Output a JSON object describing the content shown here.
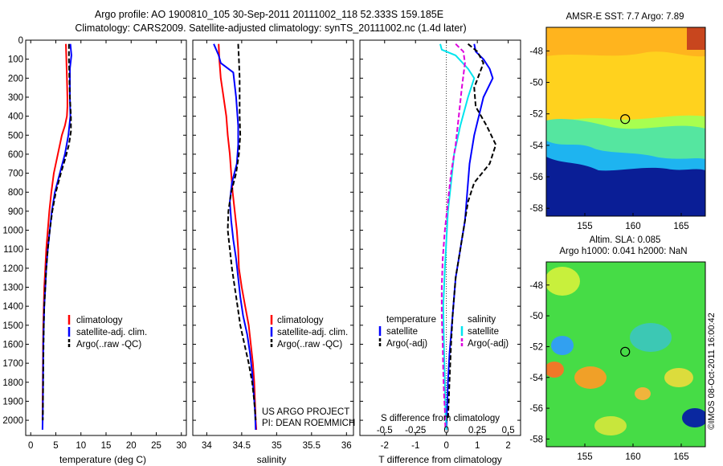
{
  "header": {
    "title_line1": "Argo profile: AO 1900810_105 30-Sep-2011 20111002_118 52.333S 159.185E",
    "title_line2": "Climatology: CARS2009. Satellite-adjusted climatology: synTS_20111002.nc (1.4d later)"
  },
  "footer": {
    "project_line1": "US ARGO PROJECT",
    "project_line2": "PI: DEAN ROEMMICH",
    "copyright": "©IMOS 08-Oct-2011 16:00:42"
  },
  "colors": {
    "climatology": "#ff0000",
    "satellite": "#0000ff",
    "argo": "#000000",
    "sat_salinity": "#00e5ee",
    "argo_salinity": "#dd00dd"
  },
  "chart_data": [
    {
      "type": "line",
      "xlabel": "temperature (deg C)",
      "ylabel": "",
      "xlim": [
        -1,
        31
      ],
      "ylim": [
        2080,
        0
      ],
      "xticks": [
        "0",
        "5",
        "10",
        "15",
        "20",
        "25",
        "30"
      ],
      "xtick_values": [
        0,
        5,
        10,
        15,
        20,
        25,
        30
      ],
      "yticks": [
        0,
        100,
        200,
        300,
        400,
        500,
        600,
        700,
        800,
        900,
        1000,
        1100,
        1200,
        1300,
        1400,
        1500,
        1600,
        1700,
        1800,
        1900,
        2000
      ],
      "legend": [
        "climatology",
        "satellite-adj. clim.",
        "Argo(..raw -QC)"
      ],
      "series": [
        {
          "name": "climatology",
          "style": "solid",
          "color": "#ff0000",
          "x": [
            7.0,
            7.1,
            7.2,
            7.3,
            7.3,
            7.2,
            6.8,
            6.2,
            5.4,
            4.6,
            4.1,
            3.7,
            3.4,
            3.1,
            2.9,
            2.7,
            2.6,
            2.5,
            2.45,
            2.4,
            2.35
          ],
          "y": [
            20,
            100,
            200,
            300,
            350,
            400,
            450,
            500,
            600,
            700,
            800,
            900,
            1000,
            1100,
            1200,
            1300,
            1400,
            1500,
            1600,
            1800,
            2000
          ]
        },
        {
          "name": "satellite-adj. clim.",
          "style": "solid",
          "color": "#0000ff",
          "x": [
            7.9,
            8.1,
            7.8,
            7.8,
            7.9,
            7.5,
            6.8,
            5.8,
            4.8,
            4.2,
            3.8,
            3.4,
            3.1,
            2.9,
            2.7,
            2.6,
            2.5,
            2.45,
            2.4,
            2.35
          ],
          "y": [
            20,
            80,
            150,
            300,
            400,
            500,
            600,
            700,
            800,
            900,
            1000,
            1100,
            1200,
            1300,
            1400,
            1500,
            1600,
            1800,
            1950,
            2050
          ]
        },
        {
          "name": "Argo(..raw -QC)",
          "style": "dashed",
          "color": "#000000",
          "x": [
            7.6,
            7.6,
            7.7,
            7.8,
            8.0,
            8.0,
            7.6,
            6.9,
            6.0,
            5.0,
            4.3,
            3.8,
            3.4,
            3.1,
            2.9,
            2.7,
            2.6,
            2.5,
            2.4
          ],
          "y": [
            20,
            100,
            200,
            300,
            400,
            480,
            550,
            620,
            700,
            800,
            900,
            1000,
            1100,
            1200,
            1300,
            1400,
            1500,
            1700,
            2000
          ]
        }
      ]
    },
    {
      "type": "line",
      "xlabel": "salinity",
      "ylabel": "",
      "xlim": [
        33.8,
        36.1
      ],
      "ylim": [
        2080,
        0
      ],
      "xticks": [
        "34",
        "34.5",
        "35",
        "35.5",
        "36"
      ],
      "xtick_values": [
        34,
        34.5,
        35,
        35.5,
        36
      ],
      "legend": [
        "climatology",
        "satellite-adj. clim.",
        "Argo(..raw -QC)"
      ],
      "series": [
        {
          "name": "climatology",
          "style": "solid",
          "color": "#ff0000",
          "x": [
            34.17,
            34.18,
            34.2,
            34.24,
            34.28,
            34.3,
            34.33,
            34.35,
            34.37,
            34.4,
            34.43,
            34.45,
            34.46,
            34.5,
            34.55,
            34.6,
            34.63,
            34.66,
            34.68,
            34.69,
            34.7,
            34.71
          ],
          "y": [
            20,
            100,
            200,
            300,
            400,
            500,
            600,
            700,
            800,
            900,
            1000,
            1100,
            1200,
            1300,
            1400,
            1500,
            1600,
            1700,
            1800,
            1900,
            2000,
            2050
          ]
        },
        {
          "name": "satellite-adj. clim.",
          "style": "solid",
          "color": "#0000ff",
          "x": [
            34.1,
            34.17,
            34.2,
            34.38,
            34.42,
            34.45,
            34.45,
            34.43,
            34.36,
            34.33,
            34.35,
            34.38,
            34.42,
            34.45,
            34.48,
            34.52,
            34.58,
            34.62,
            34.65,
            34.67,
            34.69,
            34.7
          ],
          "y": [
            20,
            80,
            120,
            170,
            300,
            450,
            550,
            650,
            750,
            850,
            950,
            1050,
            1150,
            1250,
            1350,
            1450,
            1550,
            1650,
            1750,
            1850,
            1950,
            2050
          ]
        },
        {
          "name": "Argo(..raw -QC)",
          "style": "dashed",
          "color": "#000000",
          "x": [
            34.45,
            34.46,
            34.47,
            34.47,
            34.47,
            34.48,
            34.46,
            34.42,
            34.35,
            34.31,
            34.3,
            34.33,
            34.36,
            34.4,
            34.44,
            34.48,
            34.54,
            34.6,
            34.65,
            34.68,
            34.7
          ],
          "y": [
            20,
            100,
            200,
            300,
            400,
            500,
            600,
            700,
            800,
            900,
            1000,
            1100,
            1200,
            1300,
            1400,
            1500,
            1600,
            1700,
            1800,
            1900,
            2000
          ]
        }
      ]
    },
    {
      "type": "line",
      "xlabel": "T difference from climatology",
      "x2label": "S difference from climatology",
      "xlim": [
        -2.8,
        2.4
      ],
      "ylim": [
        2080,
        0
      ],
      "xticks": [
        "-2",
        "-1",
        "0",
        "1",
        "2"
      ],
      "xtick_values": [
        -2,
        -1,
        0,
        1,
        2
      ],
      "x2ticks": [
        "-0.5",
        "-0.25",
        "0",
        "0.25",
        "0.5"
      ],
      "legend_headers": [
        "temperature",
        "salinity"
      ],
      "legend": [
        "satellite",
        "Argo(-adj)",
        "satellite",
        "Argo(-adj)"
      ],
      "series": [
        {
          "name": "satellite",
          "quantity": "temperature",
          "style": "solid",
          "color": "#0000ff",
          "x": [
            0.9,
            0.95,
            1.2,
            1.4,
            1.5,
            1.2,
            0.9,
            0.75,
            0.7,
            0.65,
            0.6,
            0.5,
            0.4,
            0.3,
            0.25,
            0.2,
            0.15,
            0.1,
            0.05,
            0.0
          ],
          "y": [
            20,
            60,
            100,
            150,
            200,
            300,
            500,
            650,
            750,
            850,
            950,
            1050,
            1150,
            1250,
            1350,
            1450,
            1550,
            1650,
            1800,
            2050
          ]
        },
        {
          "name": "Argo(-adj)",
          "quantity": "temperature",
          "style": "dashed",
          "color": "#000000",
          "x": [
            0.7,
            1.0,
            1.2,
            0.9,
            0.95,
            1.3,
            1.6,
            1.4,
            0.9,
            0.7,
            0.6,
            0.5,
            0.4,
            0.3,
            0.25,
            0.2,
            0.15,
            0.1,
            0.05
          ],
          "y": [
            20,
            60,
            120,
            250,
            350,
            450,
            550,
            650,
            750,
            850,
            950,
            1050,
            1150,
            1250,
            1350,
            1450,
            1600,
            1800,
            2000
          ]
        },
        {
          "name": "satellite",
          "quantity": "salinity",
          "style": "solid",
          "color": "#00e5ee",
          "x": [
            -0.2,
            -0.15,
            0.3,
            0.7,
            0.9,
            0.7,
            0.45,
            0.25,
            0.15,
            0.05,
            0.0,
            -0.05,
            -0.1,
            -0.08,
            -0.05,
            -0.03,
            0.0
          ],
          "y": [
            20,
            50,
            80,
            150,
            200,
            300,
            450,
            600,
            750,
            900,
            1050,
            1200,
            1400,
            1600,
            1800,
            1950,
            2050
          ]
        },
        {
          "name": "Argo(-adj)",
          "quantity": "salinity",
          "style": "dashed",
          "color": "#dd00dd",
          "x": [
            0.3,
            0.55,
            0.6,
            0.5,
            0.4,
            0.3,
            0.15,
            0.05,
            -0.05,
            -0.12,
            -0.15,
            -0.15,
            -0.12,
            -0.1,
            -0.08,
            -0.05,
            -0.03
          ],
          "y": [
            20,
            60,
            120,
            250,
            400,
            550,
            700,
            850,
            1000,
            1150,
            1300,
            1450,
            1600,
            1750,
            1850,
            1950,
            2050
          ]
        }
      ]
    },
    {
      "type": "heatmap",
      "title": "AMSR-E SST: 7.7 Argo: 7.89",
      "xlim": [
        151,
        167.5
      ],
      "ylim": [
        -58.5,
        -46.5
      ],
      "xticks": [
        "155",
        "160",
        "165"
      ],
      "xtick_values": [
        155,
        160,
        165
      ],
      "yticks": [
        "-48",
        "-50",
        "-52",
        "-54",
        "-56",
        "-58"
      ],
      "ytick_values": [
        -48,
        -50,
        -52,
        -54,
        -56,
        -58
      ],
      "marker": {
        "lon": 159.185,
        "lat": -52.333
      }
    },
    {
      "type": "heatmap",
      "title_line1": "Altim. SLA: 0.085",
      "title_line2": "Argo h1000: 0.041 h2000: NaN",
      "xlim": [
        151,
        167.5
      ],
      "ylim": [
        -58.5,
        -46.5
      ],
      "xticks": [
        "155",
        "160",
        "165"
      ],
      "xtick_values": [
        155,
        160,
        165
      ],
      "yticks": [
        "-48",
        "-50",
        "-52",
        "-54",
        "-56",
        "-58"
      ],
      "ytick_values": [
        -48,
        -50,
        -52,
        -54,
        -56,
        -58
      ],
      "marker": {
        "lon": 159.185,
        "lat": -52.333
      }
    }
  ]
}
